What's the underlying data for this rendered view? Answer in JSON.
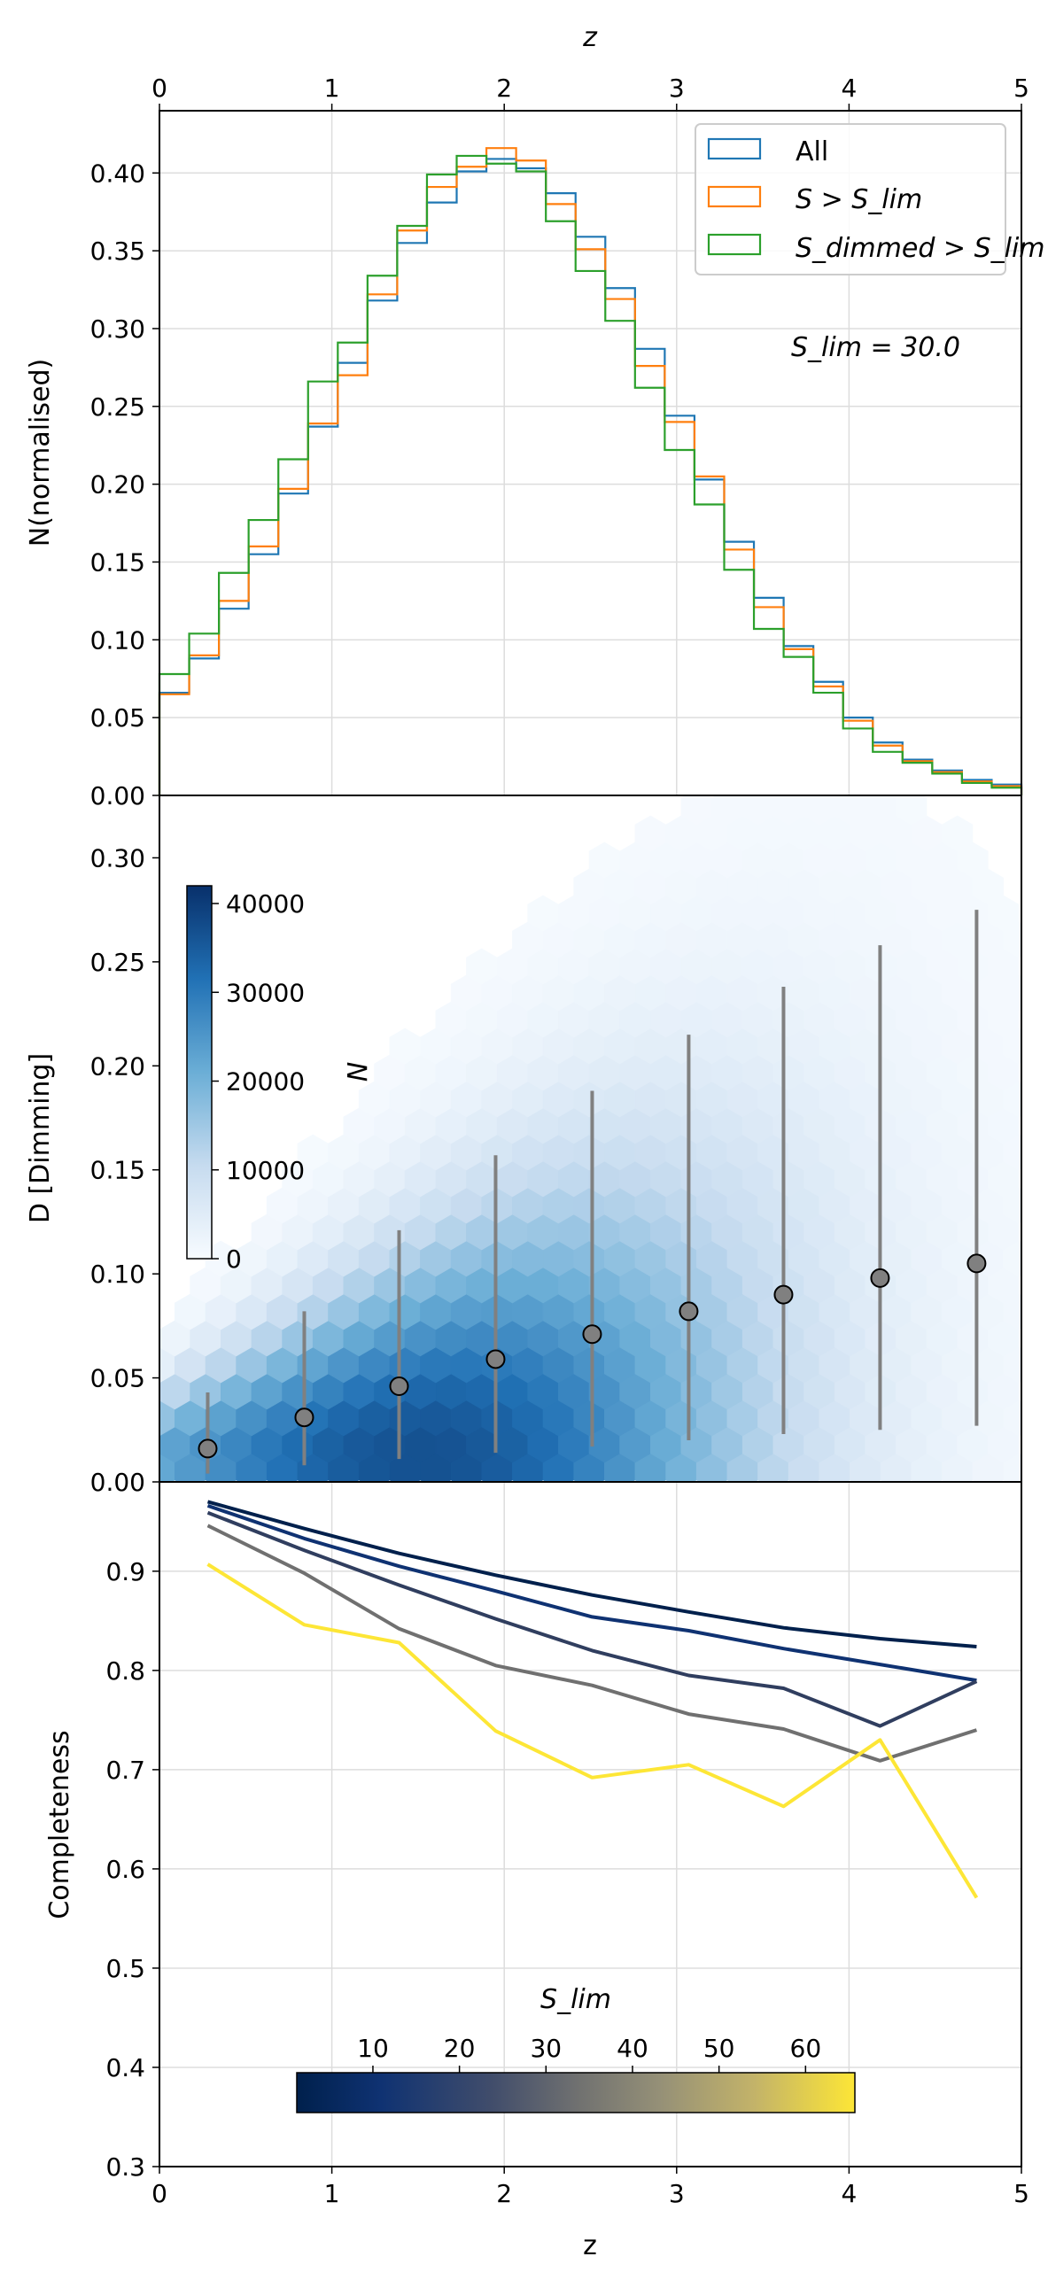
{
  "chart_data": [
    {
      "type": "step",
      "panel": "top",
      "xlabel": "z",
      "ylabel": "N(normalised)",
      "xlim": [
        0,
        5
      ],
      "ylim": [
        0,
        0.44
      ],
      "xticks": [
        "0",
        "1",
        "2",
        "3",
        "4",
        "5"
      ],
      "yticks": [
        "0.00",
        "0.05",
        "0.10",
        "0.15",
        "0.20",
        "0.25",
        "0.30",
        "0.35",
        "0.40"
      ],
      "grid": true,
      "legend_position": "top-right",
      "annotation": "S_lim = 30.0",
      "bin_edges": [
        0,
        0.1724,
        0.3448,
        0.5172,
        0.6897,
        0.8621,
        1.0345,
        1.2069,
        1.3793,
        1.5517,
        1.7241,
        1.8966,
        2.069,
        2.2414,
        2.4138,
        2.5862,
        2.7586,
        2.931,
        3.1034,
        3.2759,
        3.4483,
        3.6207,
        3.7931,
        3.9655,
        4.1379,
        4.3103,
        4.4828,
        4.6552,
        4.8276,
        5.0
      ],
      "series": [
        {
          "name": "All",
          "color": "#1f77b4",
          "values": [
            0.066,
            0.088,
            0.12,
            0.155,
            0.194,
            0.237,
            0.278,
            0.318,
            0.355,
            0.381,
            0.401,
            0.409,
            0.403,
            0.387,
            0.359,
            0.326,
            0.287,
            0.244,
            0.203,
            0.163,
            0.127,
            0.096,
            0.073,
            0.05,
            0.034,
            0.023,
            0.016,
            0.01,
            0.007
          ]
        },
        {
          "name": "S > S_lim",
          "color": "#ff7f0e",
          "values": [
            0.065,
            0.09,
            0.125,
            0.16,
            0.197,
            0.239,
            0.27,
            0.322,
            0.363,
            0.391,
            0.404,
            0.416,
            0.408,
            0.38,
            0.351,
            0.319,
            0.276,
            0.24,
            0.205,
            0.158,
            0.121,
            0.094,
            0.07,
            0.048,
            0.032,
            0.022,
            0.015,
            0.009,
            0.006
          ]
        },
        {
          "name": "S_dimmed > S_lim",
          "color": "#2ca02c",
          "values": [
            0.078,
            0.104,
            0.143,
            0.177,
            0.216,
            0.266,
            0.291,
            0.334,
            0.366,
            0.399,
            0.411,
            0.406,
            0.401,
            0.369,
            0.337,
            0.305,
            0.262,
            0.222,
            0.187,
            0.145,
            0.107,
            0.089,
            0.066,
            0.043,
            0.028,
            0.021,
            0.014,
            0.008,
            0.005
          ]
        }
      ]
    },
    {
      "type": "heatmap",
      "panel": "middle",
      "subtype": "hexbin",
      "ylabel": "D [Dimming]",
      "xlim": [
        0,
        5
      ],
      "ylim": [
        0,
        0.33
      ],
      "yticks": [
        "0.00",
        "0.05",
        "0.10",
        "0.15",
        "0.20",
        "0.25",
        "0.30"
      ],
      "colorbar": {
        "label": "N",
        "min": 0,
        "max": 42000,
        "ticks": [
          "0",
          "10000",
          "20000",
          "30000",
          "40000"
        ],
        "cmap": "Blues",
        "position": "upper-left"
      },
      "points": [
        {
          "x": 0.28,
          "y": 0.016,
          "low": 0.004,
          "high": 0.043
        },
        {
          "x": 0.84,
          "y": 0.031,
          "low": 0.008,
          "high": 0.082
        },
        {
          "x": 1.39,
          "y": 0.046,
          "low": 0.011,
          "high": 0.121
        },
        {
          "x": 1.95,
          "y": 0.059,
          "low": 0.014,
          "high": 0.157
        },
        {
          "x": 2.51,
          "y": 0.071,
          "low": 0.017,
          "high": 0.188
        },
        {
          "x": 3.07,
          "y": 0.082,
          "low": 0.02,
          "high": 0.215
        },
        {
          "x": 3.62,
          "y": 0.09,
          "low": 0.023,
          "high": 0.238
        },
        {
          "x": 4.18,
          "y": 0.098,
          "low": 0.025,
          "high": 0.258
        },
        {
          "x": 4.74,
          "y": 0.105,
          "low": 0.027,
          "high": 0.275
        }
      ]
    },
    {
      "type": "line",
      "panel": "bottom",
      "xlabel": "z",
      "ylabel": "Completeness",
      "xlim": [
        0,
        5
      ],
      "ylim": [
        0.3,
        0.99
      ],
      "xticks": [
        "0",
        "1",
        "2",
        "3",
        "4",
        "5"
      ],
      "yticks": [
        "0.3",
        "0.4",
        "0.5",
        "0.6",
        "0.7",
        "0.8",
        "0.9"
      ],
      "grid": true,
      "x": [
        0.28,
        0.84,
        1.39,
        1.95,
        2.51,
        3.07,
        3.62,
        4.18,
        4.74
      ],
      "series": [
        {
          "color": "#00204c",
          "values": [
            0.97,
            0.943,
            0.918,
            0.896,
            0.876,
            0.859,
            0.843,
            0.832,
            0.824
          ]
        },
        {
          "color": "#0f3272",
          "values": [
            0.966,
            0.933,
            0.905,
            0.88,
            0.854,
            0.84,
            0.822,
            0.806,
            0.79
          ]
        },
        {
          "color": "#303e5f",
          "values": [
            0.959,
            0.921,
            0.886,
            0.852,
            0.82,
            0.795,
            0.782,
            0.744,
            0.789
          ]
        },
        {
          "color": "#707070",
          "values": [
            0.946,
            0.898,
            0.842,
            0.805,
            0.785,
            0.756,
            0.741,
            0.709,
            0.74
          ]
        },
        {
          "color": "#fde636",
          "values": [
            0.907,
            0.846,
            0.828,
            0.739,
            0.692,
            0.705,
            0.663,
            0.73,
            0.571
          ]
        }
      ],
      "colorbar": {
        "label": "S_lim",
        "ticks": [
          "10",
          "20",
          "30",
          "40",
          "50",
          "60"
        ],
        "cmap": "cividis",
        "position": "lower-center"
      }
    }
  ]
}
